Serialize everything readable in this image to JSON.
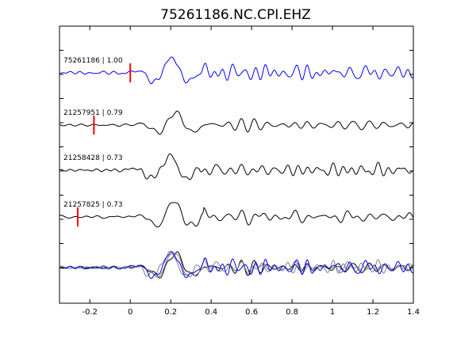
{
  "chart_data": {
    "type": "line",
    "title": "75261186.NC.CPI.EHZ",
    "xlabel": "",
    "ylabel": "",
    "xlim": [
      -0.35,
      1.4
    ],
    "xticks": [
      {
        "value": -0.2,
        "label": "-0.2"
      },
      {
        "value": 0,
        "label": "0"
      },
      {
        "value": 0.2,
        "label": "0.2"
      },
      {
        "value": 0.4,
        "label": "0.4"
      },
      {
        "value": 0.6,
        "label": "0.6"
      },
      {
        "value": 0.8,
        "label": "0.8"
      },
      {
        "value": 1,
        "label": "1"
      },
      {
        "value": 1.2,
        "label": "1.2"
      },
      {
        "value": 1.4,
        "label": "1.4"
      }
    ],
    "grid": false,
    "legend": "none",
    "series": [
      {
        "label": "75261186 | 1.00",
        "color": "#0000ff",
        "pick_time": 0.0,
        "seed": 1,
        "offset": 0.0
      },
      {
        "label": "21257951 | 0.79",
        "color": "#000000",
        "pick_time": -0.18,
        "seed": 2,
        "offset": 0.02
      },
      {
        "label": "21258428 | 0.73",
        "color": "#000000",
        "pick_time": null,
        "seed": 3,
        "offset": -0.01
      },
      {
        "label": "21257825 | 0.73",
        "color": "#000000",
        "pick_time": -0.26,
        "seed": 4,
        "offset": 0.01
      }
    ],
    "stack_colors": [
      "#000000",
      "#808080",
      "#808080",
      "#0000ff"
    ],
    "pick_color": "#ff0000"
  }
}
